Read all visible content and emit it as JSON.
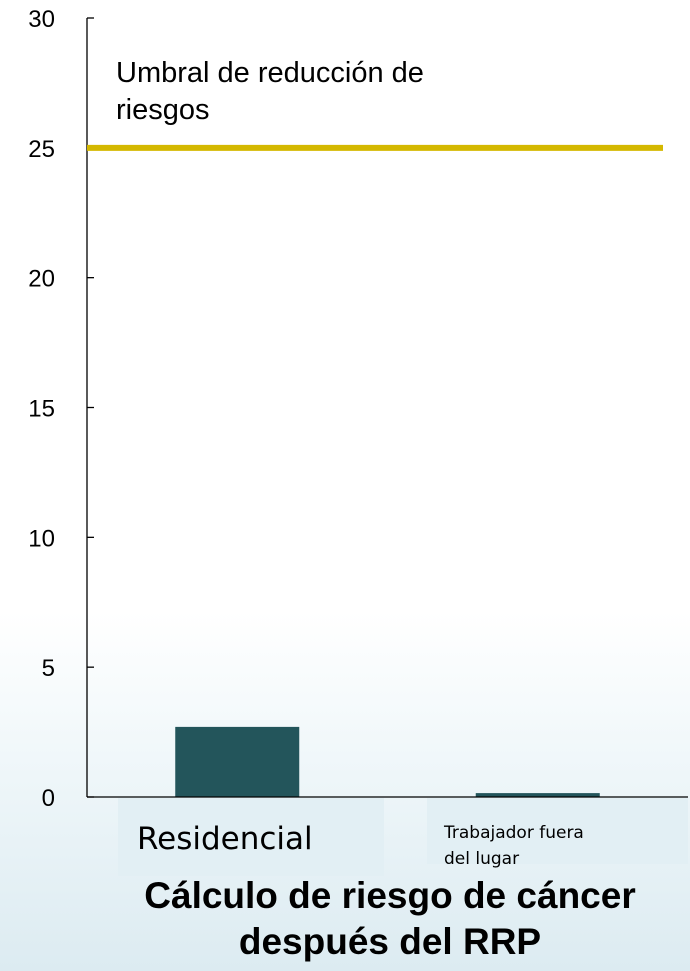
{
  "chart_data": {
    "type": "bar",
    "categories": [
      "Residencial",
      "Trabajador fuera del lugar"
    ],
    "category_label_lines": [
      [
        "Residencial"
      ],
      [
        "Trabajador fuera",
        "del lugar"
      ]
    ],
    "values": [
      2.7,
      0.15
    ],
    "bar_color": "#23555b",
    "ylim": [
      0,
      30
    ],
    "yticks": [
      0,
      5,
      10,
      15,
      20,
      25,
      30
    ],
    "threshold": {
      "value": 25,
      "label_lines": [
        "Umbral de reducción de",
        "riesgos"
      ],
      "color": "#d4b800"
    },
    "title_lines": [
      "Cálculo de riesgo de cáncer",
      "después del RRP"
    ],
    "xlabel": "",
    "ylabel": "",
    "grid": false
  }
}
